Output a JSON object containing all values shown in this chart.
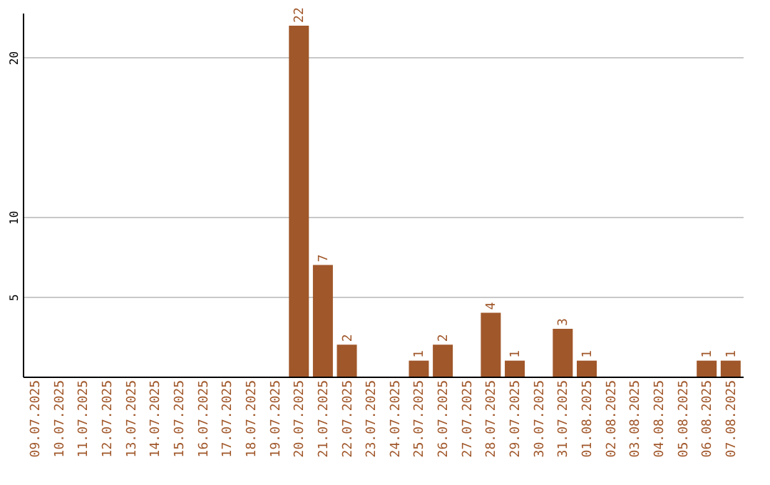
{
  "chart_data": {
    "type": "bar",
    "categories": [
      "09.07.2025",
      "10.07.2025",
      "11.07.2025",
      "12.07.2025",
      "13.07.2025",
      "14.07.2025",
      "15.07.2025",
      "16.07.2025",
      "17.07.2025",
      "18.07.2025",
      "19.07.2025",
      "20.07.2025",
      "21.07.2025",
      "22.07.2025",
      "23.07.2025",
      "24.07.2025",
      "25.07.2025",
      "26.07.2025",
      "27.07.2025",
      "28.07.2025",
      "29.07.2025",
      "30.07.2025",
      "31.07.2025",
      "01.08.2025",
      "02.08.2025",
      "03.08.2025",
      "04.08.2025",
      "05.08.2025",
      "06.08.2025",
      "07.08.2025"
    ],
    "values": [
      0,
      0,
      0,
      0,
      0,
      0,
      0,
      0,
      0,
      0,
      0,
      22,
      7,
      2,
      0,
      0,
      1,
      2,
      0,
      4,
      1,
      0,
      3,
      1,
      0,
      0,
      0,
      0,
      1,
      1
    ],
    "value_labels": [
      null,
      null,
      null,
      null,
      null,
      null,
      null,
      null,
      null,
      null,
      null,
      "22",
      "7",
      "2",
      null,
      null,
      "1",
      "2",
      null,
      "4",
      "1",
      null,
      "3",
      "1",
      null,
      null,
      null,
      null,
      "1",
      "1"
    ],
    "color": "#a0572a",
    "ylim": [
      0,
      22.8
    ],
    "yticks": [
      5,
      10,
      20
    ],
    "grid": "y"
  }
}
